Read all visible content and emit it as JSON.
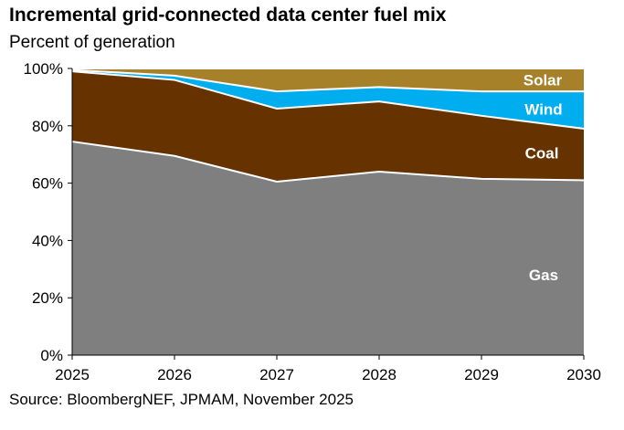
{
  "chart_data": {
    "type": "area",
    "stacked": true,
    "title": "Incremental grid-connected data center fuel mix",
    "subtitle": "Percent of generation",
    "x": [
      "2025",
      "2026",
      "2027",
      "2028",
      "2029",
      "2030"
    ],
    "ylim": [
      0,
      100
    ],
    "yticks": [
      "0%",
      "20%",
      "40%",
      "60%",
      "80%",
      "100%"
    ],
    "grid": false,
    "series": [
      {
        "name": "Gas",
        "color": "#7f7f7f",
        "values": [
          74.5,
          69.5,
          60.5,
          64,
          61.5,
          61
        ]
      },
      {
        "name": "Coal",
        "color": "#663300",
        "values": [
          24.5,
          26.5,
          25.5,
          24.5,
          22,
          18
        ]
      },
      {
        "name": "Wind",
        "color": "#00aeef",
        "values": [
          0.5,
          1.5,
          6,
          5,
          8.5,
          13
        ]
      },
      {
        "name": "Solar",
        "color": "#a6812a",
        "values": [
          0.5,
          2.5,
          8,
          6.5,
          8,
          8
        ]
      }
    ],
    "source": "Source: BloombergNEF, JPMAM, November 2025"
  }
}
